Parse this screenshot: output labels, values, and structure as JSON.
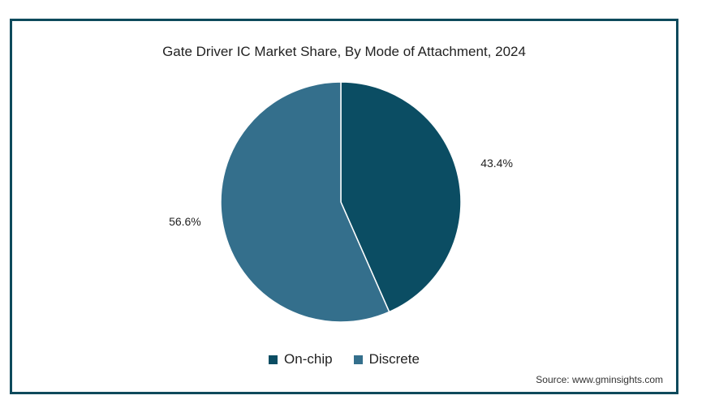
{
  "chart_data": {
    "type": "pie",
    "title": "Gate Driver IC Market Share, By Mode of Attachment, 2024",
    "categories": [
      "On-chip",
      "Discrete"
    ],
    "values": [
      43.4,
      56.6
    ],
    "labels": [
      "43.4%",
      "56.6%"
    ],
    "colors": [
      "#0b4d63",
      "#346f8c"
    ],
    "legend_position": "bottom"
  },
  "source": "Source: www.gminsights.com"
}
